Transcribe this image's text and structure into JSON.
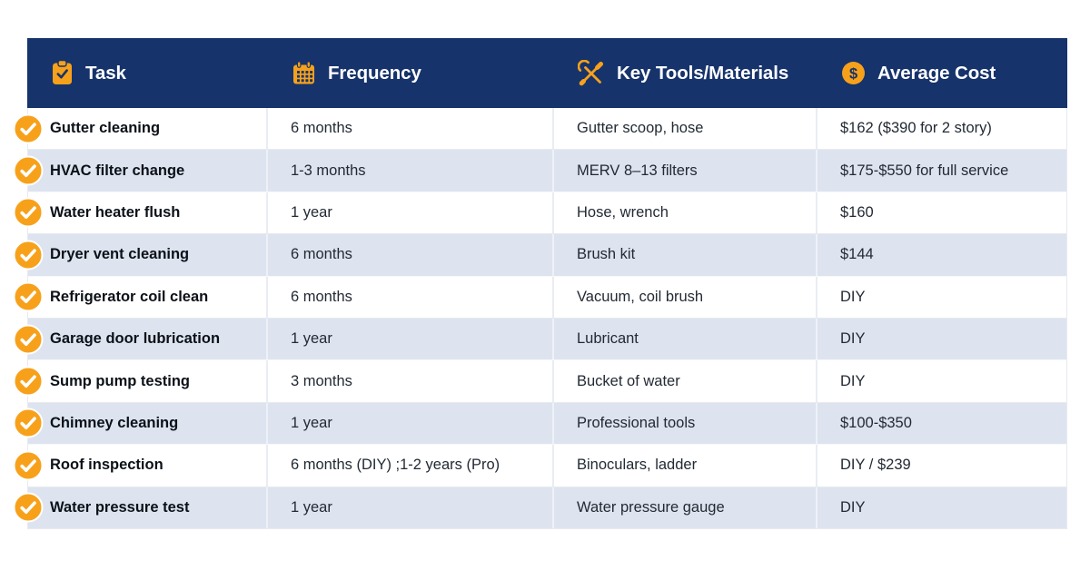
{
  "page": {
    "background": "#FFFFFF"
  },
  "colors": {
    "header_background": "#16336B",
    "header_text": "#FFFFFF",
    "accent_orange": "#F7A11B",
    "row_background": "#FFFFFF",
    "row_alt_background": "#DDE4EF",
    "task_text": "#0C1118",
    "cell_text": "#232A34",
    "divider": "#E7EAEF"
  },
  "table": {
    "header": {
      "columns": [
        {
          "label": "Task",
          "icon": "clipboard-check-icon"
        },
        {
          "label": "Frequency",
          "icon": "calendar-icon"
        },
        {
          "label": "Key Tools/Materials",
          "icon": "crossed-tools-icon"
        },
        {
          "label": "Average Cost",
          "icon": "dollar-coin-icon"
        }
      ]
    },
    "row_bullet_icon": "check-circle-icon",
    "rows": [
      {
        "task": "Gutter cleaning",
        "frequency": "6 months",
        "tools": "Gutter scoop, hose",
        "cost": "$162 ($390 for 2 story)"
      },
      {
        "task": "HVAC filter change",
        "frequency": "1-3 months",
        "tools": "MERV 8–13 filters",
        "cost": "$175-$550 for full service"
      },
      {
        "task": "Water heater flush",
        "frequency": "1 year",
        "tools": "Hose, wrench",
        "cost": "$160"
      },
      {
        "task": "Dryer vent cleaning",
        "frequency": "6 months",
        "tools": "Brush kit",
        "cost": "$144"
      },
      {
        "task": "Refrigerator coil clean",
        "frequency": "6 months",
        "tools": "Vacuum, coil brush",
        "cost": "DIY"
      },
      {
        "task": "Garage door lubrication",
        "frequency": "1 year",
        "tools": "Lubricant",
        "cost": "DIY"
      },
      {
        "task": "Sump pump testing",
        "frequency": "3 months",
        "tools": "Bucket of water",
        "cost": "DIY"
      },
      {
        "task": "Chimney cleaning",
        "frequency": "1 year",
        "tools": "Professional tools",
        "cost": "$100-$350"
      },
      {
        "task": "Roof inspection",
        "frequency": "6 months (DIY) ;1-2 years (Pro)",
        "tools": "Binoculars, ladder",
        "cost": "DIY / $239"
      },
      {
        "task": "Water pressure test",
        "frequency": "1 year",
        "tools": "Water pressure gauge",
        "cost": "DIY"
      }
    ]
  }
}
